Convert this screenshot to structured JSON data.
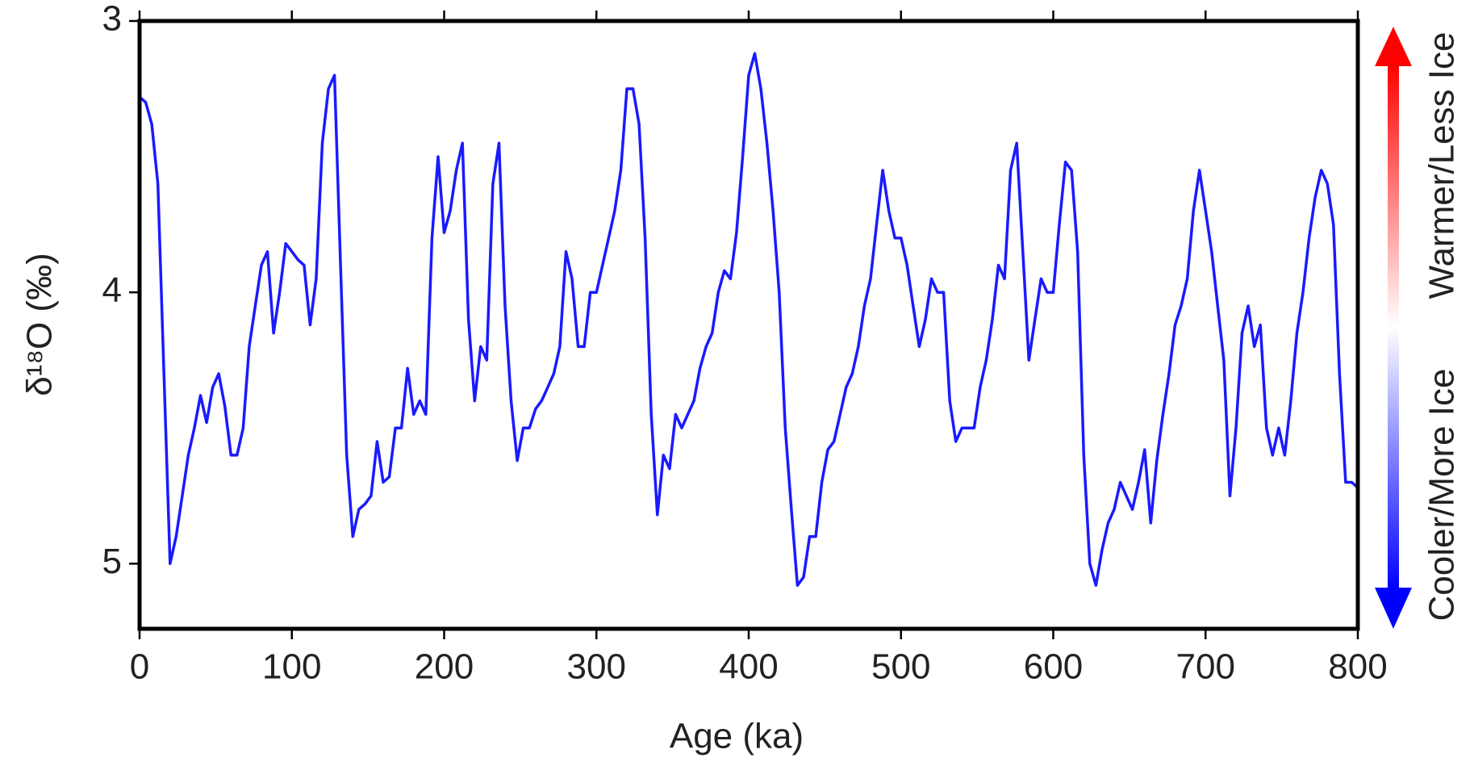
{
  "chart_data": {
    "type": "line",
    "ylabel": "δ¹⁸O (‰)",
    "xlabel": "Age (ka)",
    "annotations": [
      "Warmer/Less Ice",
      "Cooler/More Ice"
    ],
    "color": "#1a1aff",
    "xlim": [
      0,
      800
    ],
    "xticks": [
      0,
      100,
      200,
      300,
      400,
      500,
      600,
      700,
      800
    ],
    "ylim": [
      3,
      5.24
    ],
    "yticks": [
      3,
      4,
      5
    ],
    "y_inverted": true,
    "x": [
      0,
      4,
      8,
      12,
      16,
      20,
      24,
      28,
      32,
      36,
      40,
      44,
      48,
      52,
      56,
      60,
      64,
      68,
      72,
      76,
      80,
      84,
      88,
      92,
      96,
      100,
      104,
      108,
      112,
      116,
      120,
      124,
      128,
      132,
      136,
      140,
      144,
      148,
      152,
      156,
      160,
      164,
      168,
      172,
      176,
      180,
      184,
      188,
      192,
      196,
      200,
      204,
      208,
      212,
      216,
      220,
      224,
      228,
      232,
      236,
      240,
      244,
      248,
      252,
      256,
      260,
      264,
      268,
      272,
      276,
      280,
      284,
      288,
      292,
      296,
      300,
      304,
      308,
      312,
      316,
      320,
      324,
      328,
      332,
      336,
      340,
      344,
      348,
      352,
      356,
      360,
      364,
      368,
      372,
      376,
      380,
      384,
      388,
      392,
      396,
      400,
      404,
      408,
      412,
      416,
      420,
      424,
      428,
      432,
      436,
      440,
      444,
      448,
      452,
      456,
      460,
      464,
      468,
      472,
      476,
      480,
      484,
      488,
      492,
      496,
      500,
      504,
      508,
      512,
      516,
      520,
      524,
      528,
      532,
      536,
      540,
      544,
      548,
      552,
      556,
      560,
      564,
      568,
      572,
      576,
      580,
      584,
      588,
      592,
      596,
      600,
      604,
      608,
      612,
      616,
      620,
      624,
      628,
      632,
      636,
      640,
      644,
      648,
      652,
      656,
      660,
      664,
      668,
      672,
      676,
      680,
      684,
      688,
      692,
      696,
      700,
      704,
      708,
      712,
      716,
      720,
      724,
      728,
      732,
      736,
      740,
      744,
      748,
      752,
      756,
      760,
      764,
      768,
      772,
      776,
      780,
      784,
      788,
      792,
      796,
      800
    ],
    "values": [
      3.28,
      3.3,
      3.38,
      3.6,
      4.3,
      5.0,
      4.9,
      4.75,
      4.6,
      4.5,
      4.38,
      4.48,
      4.35,
      4.3,
      4.42,
      4.6,
      4.6,
      4.5,
      4.2,
      4.05,
      3.9,
      3.85,
      4.15,
      4.0,
      3.82,
      3.85,
      3.88,
      3.9,
      4.12,
      3.95,
      3.45,
      3.25,
      3.2,
      3.9,
      4.6,
      4.9,
      4.8,
      4.78,
      4.75,
      4.55,
      4.7,
      4.68,
      4.5,
      4.5,
      4.28,
      4.45,
      4.4,
      4.45,
      3.8,
      3.5,
      3.78,
      3.7,
      3.55,
      3.45,
      4.1,
      4.4,
      4.2,
      4.25,
      3.6,
      3.45,
      4.05,
      4.4,
      4.62,
      4.5,
      4.5,
      4.43,
      4.4,
      4.35,
      4.3,
      4.2,
      3.85,
      3.95,
      4.2,
      4.2,
      4.0,
      4.0,
      3.9,
      3.8,
      3.7,
      3.55,
      3.25,
      3.25,
      3.38,
      3.8,
      4.45,
      4.82,
      4.6,
      4.65,
      4.45,
      4.5,
      4.45,
      4.4,
      4.28,
      4.2,
      4.15,
      4.0,
      3.92,
      3.95,
      3.78,
      3.5,
      3.2,
      3.12,
      3.25,
      3.45,
      3.7,
      4.0,
      4.5,
      4.8,
      5.08,
      5.05,
      4.9,
      4.9,
      4.7,
      4.58,
      4.55,
      4.45,
      4.35,
      4.3,
      4.2,
      4.05,
      3.95,
      3.75,
      3.55,
      3.7,
      3.8,
      3.8,
      3.9,
      4.05,
      4.2,
      4.1,
      3.95,
      4.0,
      4.0,
      4.4,
      4.55,
      4.5,
      4.5,
      4.5,
      4.35,
      4.25,
      4.1,
      3.9,
      3.95,
      3.55,
      3.45,
      3.85,
      4.25,
      4.1,
      3.95,
      4.0,
      4.0,
      3.75,
      3.52,
      3.55,
      3.85,
      4.6,
      5.0,
      5.08,
      4.95,
      4.85,
      4.8,
      4.7,
      4.75,
      4.8,
      4.7,
      4.58,
      4.85,
      4.62,
      4.45,
      4.3,
      4.12,
      4.05,
      3.95,
      3.7,
      3.55,
      3.7,
      3.85,
      4.05,
      4.25,
      4.75,
      4.5,
      4.15,
      4.05,
      4.2,
      4.12,
      4.5,
      4.6,
      4.5,
      4.6,
      4.4,
      4.15,
      4.0,
      3.8,
      3.65,
      3.55,
      3.6,
      3.75,
      4.3,
      4.7,
      4.7,
      4.72
    ]
  }
}
